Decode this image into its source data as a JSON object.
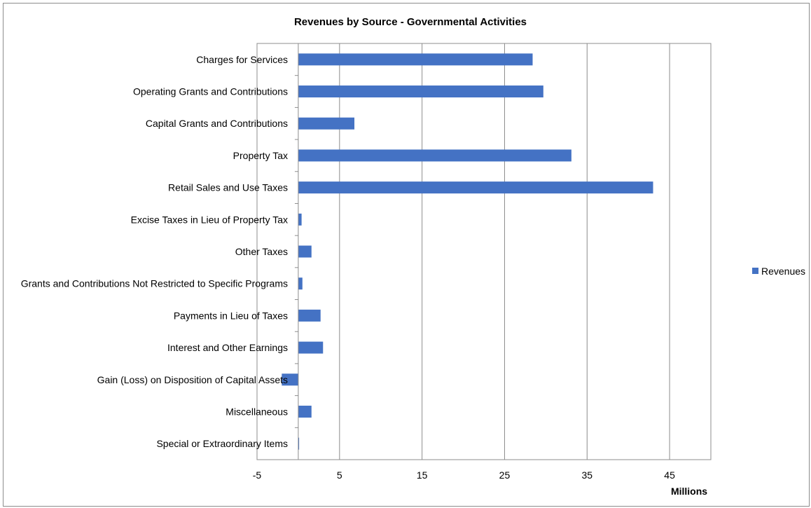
{
  "chart_data": {
    "type": "bar",
    "orientation": "horizontal",
    "title": "Revenues by Source - Governmental Activities",
    "xlabel": "",
    "ylabel": "",
    "unit_label": "Millions",
    "xlim": [
      -5,
      50
    ],
    "x_ticks": [
      -5,
      5,
      15,
      25,
      35,
      45
    ],
    "grid": "vertical",
    "legend_position": "right",
    "categories": [
      "Charges for Services",
      "Operating Grants and Contributions",
      "Capital Grants and Contributions",
      "Property Tax",
      "Retail Sales and Use Taxes",
      "Excise Taxes in Lieu of Property Tax",
      "Other Taxes",
      "Grants and Contributions Not Restricted to Specific Programs",
      "Payments in Lieu of Taxes",
      "Interest and Other Earnings",
      "Gain (Loss) on Disposition of Capital Assets",
      "Miscellaneous",
      "Special or Extraordinary Items"
    ],
    "series": [
      {
        "name": "Revenues",
        "color": "#4472c4",
        "values": [
          28.4,
          29.7,
          6.8,
          33.1,
          43.0,
          0.4,
          1.6,
          0.5,
          2.7,
          3.0,
          -2.0,
          1.6,
          0.1
        ]
      }
    ]
  }
}
